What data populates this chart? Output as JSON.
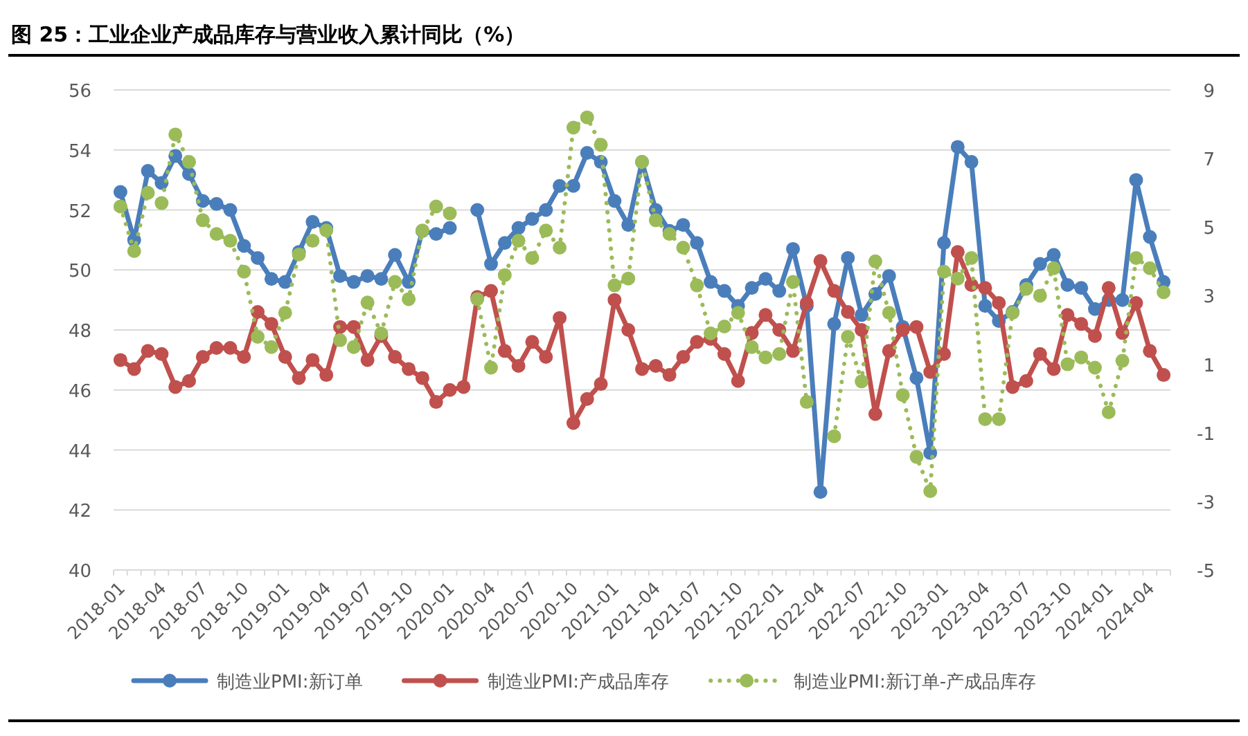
{
  "chart_data": {
    "type": "line",
    "title": "图 25：工业企业产成品库存与营业收入累计同比（%）",
    "categories": [
      "2018-01",
      null,
      null,
      "2018-04",
      null,
      null,
      "2018-07",
      null,
      null,
      "2018-10",
      null,
      null,
      "2019-01",
      null,
      null,
      "2019-04",
      null,
      null,
      "2019-07",
      null,
      null,
      "2019-10",
      null,
      null,
      "2020-01",
      null,
      null,
      "2020-04",
      null,
      null,
      "2020-07",
      null,
      null,
      "2020-10",
      null,
      null,
      "2021-01",
      null,
      null,
      "2021-04",
      null,
      null,
      "2021-07",
      null,
      null,
      "2021-10",
      null,
      null,
      "2022-01",
      null,
      null,
      "2022-04",
      null,
      null,
      "2022-07",
      null,
      null,
      "2022-10",
      null,
      null,
      "2023-01",
      null,
      null,
      "2023-04",
      null,
      null,
      "2023-07",
      null,
      null,
      "2023-10",
      null,
      null,
      "2024-01",
      null,
      null,
      "2024-04",
      null
    ],
    "series": [
      {
        "name": "制造业PMI:新订单",
        "color": "#4a7ebb",
        "line_style": "solid",
        "marker": "circle",
        "values": [
          52.6,
          51.0,
          53.3,
          52.9,
          53.8,
          53.2,
          52.3,
          52.2,
          52.0,
          50.8,
          50.4,
          49.7,
          49.6,
          50.6,
          51.6,
          51.4,
          49.8,
          49.6,
          49.8,
          49.7,
          50.5,
          49.6,
          51.3,
          51.2,
          51.4,
          null,
          52.0,
          50.2,
          50.9,
          51.4,
          51.7,
          52.0,
          52.8,
          52.8,
          53.9,
          53.6,
          52.3,
          51.5,
          53.6,
          52.0,
          51.3,
          51.5,
          50.9,
          49.6,
          49.3,
          48.8,
          49.4,
          49.7,
          49.3,
          50.7,
          48.8,
          42.6,
          48.2,
          50.4,
          48.5,
          49.2,
          49.8,
          48.1,
          46.4,
          43.9,
          50.9,
          54.1,
          53.6,
          48.8,
          48.3,
          48.6,
          49.5,
          50.2,
          50.5,
          49.5,
          49.4,
          48.7,
          49.0,
          49.0,
          53.0,
          51.1,
          49.6
        ]
      },
      {
        "name": "制造业PMI:产成品库存",
        "color": "#c0504d",
        "line_style": "solid",
        "marker": "circle",
        "values": [
          47.0,
          46.7,
          47.3,
          47.2,
          46.1,
          46.3,
          47.1,
          47.4,
          47.4,
          47.1,
          48.6,
          48.2,
          47.1,
          46.4,
          47.0,
          46.5,
          48.1,
          48.1,
          47.0,
          47.8,
          47.1,
          46.7,
          46.4,
          45.6,
          46.0,
          46.1,
          49.1,
          49.3,
          47.3,
          46.8,
          47.6,
          47.1,
          48.4,
          44.9,
          45.7,
          46.2,
          49.0,
          48.0,
          46.7,
          46.8,
          46.5,
          47.1,
          47.6,
          47.7,
          47.2,
          46.3,
          47.9,
          48.5,
          48.0,
          47.3,
          48.9,
          50.3,
          49.3,
          48.6,
          48.0,
          45.2,
          47.3,
          48.0,
          48.1,
          46.6,
          47.2,
          50.6,
          49.5,
          49.4,
          48.9,
          46.1,
          46.3,
          47.2,
          46.7,
          48.5,
          48.2,
          47.8,
          49.4,
          47.9,
          48.9,
          47.3,
          46.5
        ]
      },
      {
        "name": "制造业PMI:新订单-产成品库存",
        "color": "#9bbb59",
        "axis": "y2",
        "line_style": "dotted",
        "marker": "circle",
        "values": [
          5.6,
          4.3,
          6.0,
          5.7,
          7.7,
          6.9,
          5.2,
          4.8,
          4.6,
          3.7,
          1.8,
          1.5,
          2.5,
          4.2,
          4.6,
          4.9,
          1.7,
          1.5,
          2.8,
          1.9,
          3.4,
          2.9,
          4.9,
          5.6,
          5.4,
          null,
          2.9,
          0.9,
          3.6,
          4.6,
          4.1,
          4.9,
          4.4,
          7.9,
          8.2,
          7.4,
          3.3,
          3.5,
          6.9,
          5.2,
          4.8,
          4.4,
          3.3,
          1.9,
          2.1,
          2.5,
          1.5,
          1.2,
          1.3,
          3.4,
          -0.1,
          null,
          -1.1,
          1.8,
          0.5,
          4.0,
          2.5,
          0.1,
          -1.7,
          -2.7,
          3.7,
          3.5,
          4.1,
          -0.6,
          -0.6,
          2.5,
          3.2,
          3.0,
          3.8,
          1.0,
          1.2,
          0.9,
          -0.4,
          1.1,
          4.1,
          3.8,
          3.1
        ]
      }
    ],
    "ylim": [
      40,
      56
    ],
    "yticks": [
      40,
      42,
      44,
      46,
      48,
      50,
      52,
      54,
      56
    ],
    "y2lim": [
      -5,
      9
    ],
    "y2ticks": [
      -5,
      -3,
      -1,
      1,
      3,
      5,
      7,
      9
    ],
    "grid": "y",
    "legend": "bottom"
  }
}
